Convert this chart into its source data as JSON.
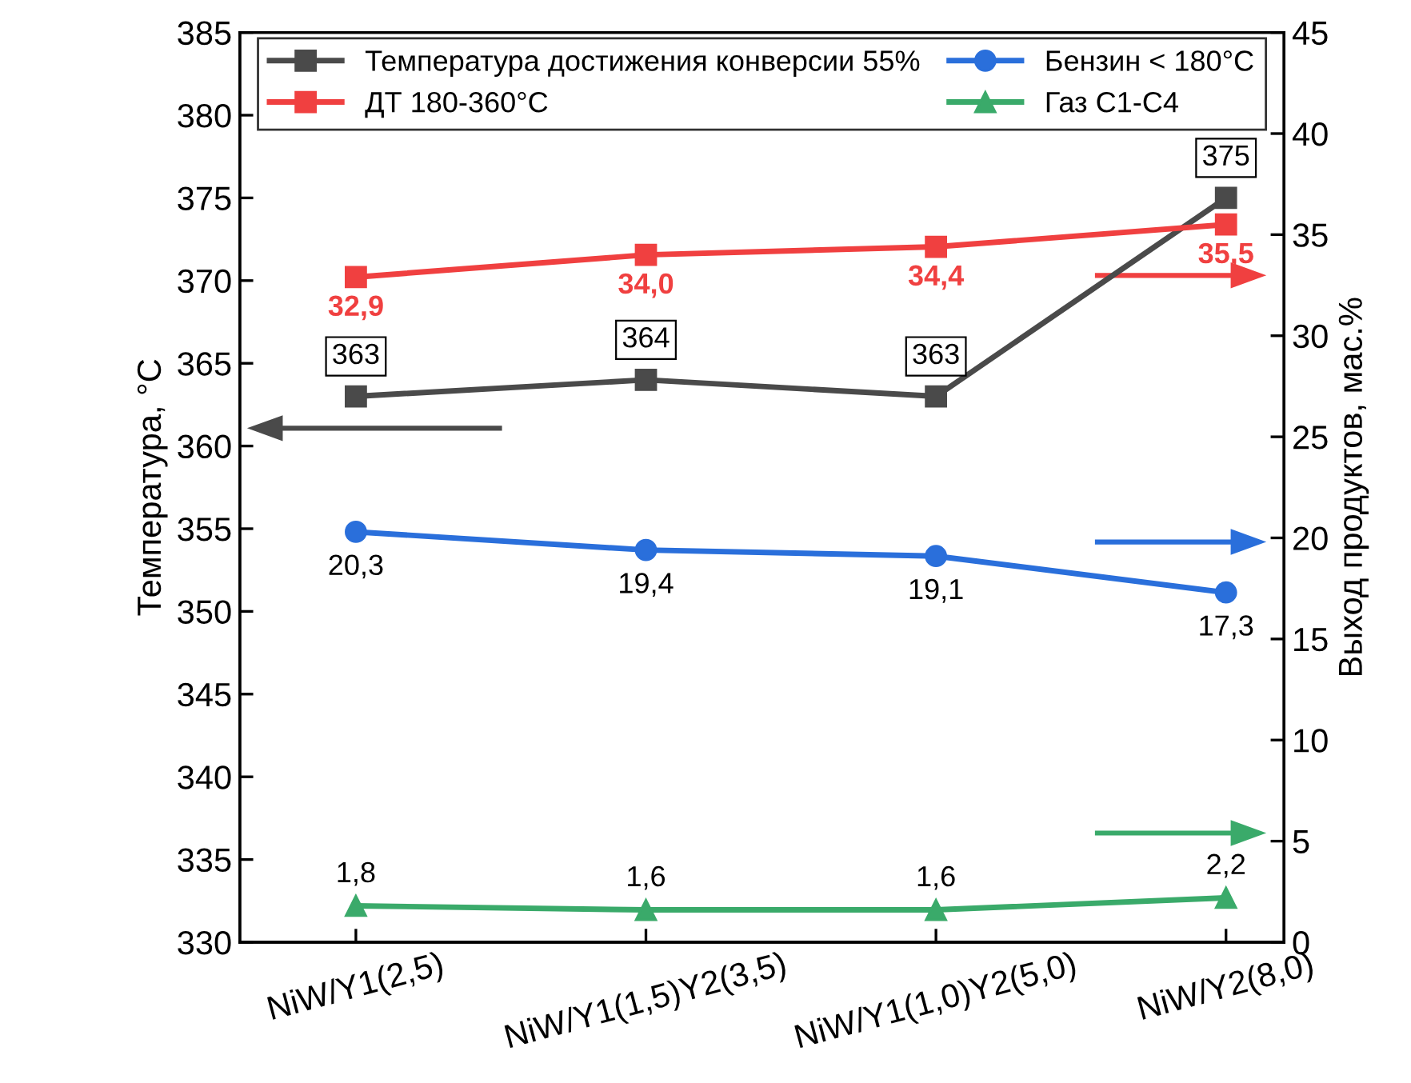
{
  "chart_data": {
    "type": "line",
    "categories": [
      "NiW/Y1(2,5)",
      "NiW/Y1(1,5)Y2(3,5)",
      "NiW/Y1(1,0)Y2(5,0)",
      "NiW/Y2(8,0)"
    ],
    "ylabel": "Температура, °C",
    "y2label": "Выход продуктов, мас.%",
    "ylim": [
      330,
      385
    ],
    "yticks": [
      330,
      335,
      340,
      345,
      350,
      355,
      360,
      365,
      370,
      375,
      380,
      385
    ],
    "y2lim": [
      0,
      45
    ],
    "y2ticks": [
      0,
      5,
      10,
      15,
      20,
      25,
      30,
      35,
      40,
      45
    ],
    "legend": "top",
    "grid": false,
    "series": [
      {
        "name": "Температура достижения конверсии 55%",
        "color": "#4a4a4a",
        "marker": "square",
        "values": [
          363,
          364,
          363,
          375
        ],
        "value_labels": [
          "363",
          "364",
          "363",
          "375"
        ]
      },
      {
        "name": "ДТ 180-360°C",
        "color": "#f04040",
        "marker": "square",
        "axis": "y2",
        "values": [
          32.9,
          34.0,
          34.4,
          35.5
        ],
        "value_labels": [
          "32,9",
          "34,0",
          "34,4",
          "35,5"
        ]
      },
      {
        "name": "Бензин < 180°C",
        "color": "#2a6fdb",
        "marker": "circle",
        "axis": "y2",
        "values": [
          20.3,
          19.4,
          19.1,
          17.3
        ],
        "value_labels": [
          "20,3",
          "19,4",
          "19,1",
          "17,3"
        ]
      },
      {
        "name": "Газ C1-C4",
        "color": "#3aaa6a",
        "marker": "triangle",
        "axis": "y2",
        "values": [
          1.8,
          1.6,
          1.6,
          2.2
        ],
        "value_labels": [
          "1,8",
          "1,6",
          "1,6",
          "2,2"
        ]
      }
    ]
  }
}
